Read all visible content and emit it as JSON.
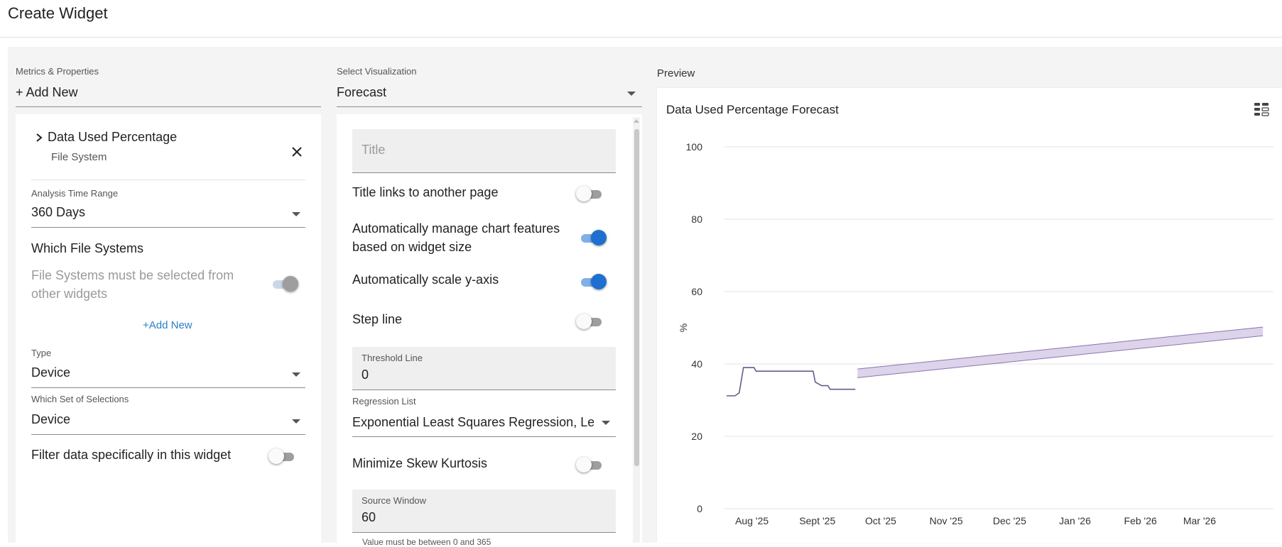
{
  "header": {
    "title": "Create Widget"
  },
  "metrics": {
    "label": "Metrics & Properties",
    "add_new": "+ Add New",
    "item": {
      "name": "Data Used Percentage",
      "subtitle": "File System"
    },
    "analysis_time_range": {
      "label": "Analysis Time Range",
      "value": "360 Days"
    },
    "which_file_systems": {
      "heading": "Which File Systems",
      "note": "File Systems must be selected from other widgets",
      "add_new": "+Add New"
    },
    "type": {
      "label": "Type",
      "value": "Device"
    },
    "selection_set": {
      "label": "Which Set of Selections",
      "value": "Device"
    },
    "filter_label": "Filter data specifically in this widget"
  },
  "visualization": {
    "label": "Select Visualization",
    "value": "Forecast",
    "title_placeholder": "Title",
    "title_links_label": "Title links to another page",
    "auto_manage_label": "Automatically manage chart features based on widget size",
    "auto_scale_label": "Automatically scale y-axis",
    "step_line_label": "Step line",
    "threshold": {
      "label": "Threshold Line",
      "value": "0"
    },
    "regression": {
      "label": "Regression List",
      "value": "Exponential Least Squares Regression, Lea..."
    },
    "minimize_skew_label": "Minimize Skew Kurtosis",
    "source_window": {
      "label": "Source Window",
      "value": "60",
      "helper": "Value must be between 0 and 365"
    },
    "toggles": {
      "title_links": false,
      "auto_manage": true,
      "auto_scale": true,
      "step_line": false,
      "minimize_skew": false
    }
  },
  "preview": {
    "label": "Preview",
    "menu_icon": "grid-view-icon"
  },
  "chart_data": {
    "type": "line",
    "title": "Data Used Percentage Forecast",
    "ylabel": "%",
    "ylim": [
      0,
      100
    ],
    "yticks": [
      0,
      20,
      40,
      60,
      80,
      100
    ],
    "xticks": [
      "Aug '25",
      "Sept '25",
      "Oct '25",
      "Nov '25",
      "Dec '25",
      "Jan '26",
      "Feb '26",
      "Mar '26"
    ],
    "grid": true,
    "series": [
      {
        "values": [
          [
            "2025-07-20",
            31.2
          ],
          [
            "2025-07-24",
            31.2
          ],
          [
            "2025-07-26",
            32
          ],
          [
            "2025-07-28",
            39
          ],
          [
            "2025-08-02",
            39
          ],
          [
            "2025-08-03",
            38
          ],
          [
            "2025-08-15",
            38
          ],
          [
            "2025-08-30",
            38
          ],
          [
            "2025-08-31",
            35
          ],
          [
            "2025-09-03",
            34
          ],
          [
            "2025-09-06",
            34
          ],
          [
            "2025-09-07",
            33
          ],
          [
            "2025-09-19",
            33
          ]
        ]
      }
    ],
    "forecast_band": {
      "start": [
        "2025-09-20",
        36.2,
        38.6
      ],
      "end": [
        "2026-03-31",
        47.8,
        50.2
      ]
    },
    "colors": {
      "line": "#6a5a8e",
      "band_fill": "#ddd3ea",
      "band_edge": "#8a74b0",
      "grid": "#e3e3e3"
    }
  }
}
